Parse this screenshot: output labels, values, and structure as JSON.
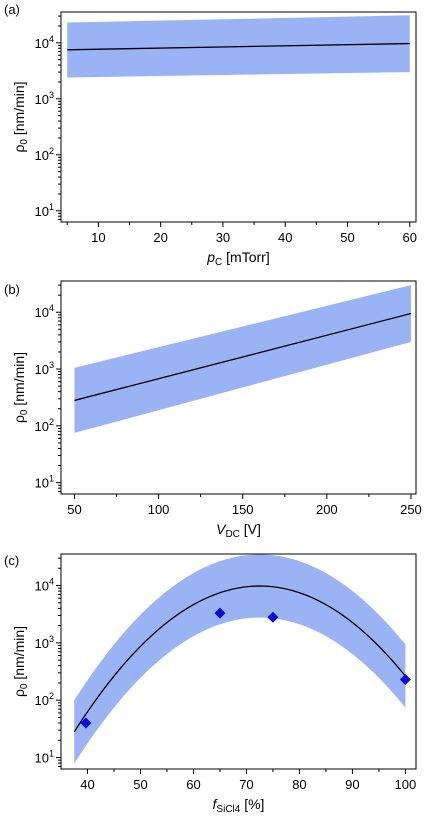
{
  "chart_data": [
    {
      "type": "line",
      "panel_label": "(a)",
      "xlabel": {
        "var": "p",
        "sub": "C",
        "unit": " [mTorr]",
        "italic": true
      },
      "ylabel": {
        "main": "ρ",
        "sub": "0",
        "unit": " [nm/min]"
      },
      "xlim": [
        4,
        61
      ],
      "ylim_log10": [
        0.8,
        4.55
      ],
      "y_scale": "log",
      "x_ticks": [
        10,
        20,
        30,
        40,
        50,
        60
      ],
      "x_minor_ticks": [
        5,
        15,
        25,
        35,
        45,
        55
      ],
      "y_ticks_exp": [
        1,
        2,
        3,
        4
      ],
      "series": [
        {
          "role": "fit",
          "x": [
            5,
            60
          ],
          "y": [
            7500,
            9700
          ]
        },
        {
          "role": "band-upper",
          "x": [
            5,
            60
          ],
          "y": [
            23000,
            31000
          ]
        },
        {
          "role": "band-lower",
          "x": [
            5,
            60
          ],
          "y": [
            2400,
            3000
          ]
        }
      ]
    },
    {
      "type": "line",
      "panel_label": "(b)",
      "xlabel": {
        "var": "V",
        "sub": "DC",
        "unit": " [V]",
        "italic": true
      },
      "ylabel": {
        "main": "ρ",
        "sub": "0",
        "unit": " [nm/min]"
      },
      "xlim": [
        42,
        253
      ],
      "ylim_log10": [
        0.8,
        4.55
      ],
      "y_scale": "log",
      "x_ticks": [
        50,
        100,
        150,
        200,
        250
      ],
      "x_minor_ticks": [
        75,
        125,
        175,
        225
      ],
      "y_ticks_exp": [
        1,
        2,
        3,
        4
      ],
      "series": [
        {
          "role": "fit",
          "x": [
            50,
            250
          ],
          "y": [
            280,
            9500
          ]
        },
        {
          "role": "band-upper",
          "x": [
            50,
            250
          ],
          "y": [
            1050,
            30000
          ]
        },
        {
          "role": "band-lower",
          "x": [
            50,
            250
          ],
          "y": [
            75,
            3000
          ]
        }
      ]
    },
    {
      "type": "scatter",
      "panel_label": "(c)",
      "xlabel": {
        "var": "f",
        "sub": "SiCl4",
        "unit": " [%]",
        "italic": true
      },
      "ylabel": {
        "main": "ρ",
        "sub": "0",
        "unit": " [nm/min]"
      },
      "xlim": [
        35,
        102
      ],
      "ylim_log10": [
        0.8,
        4.55
      ],
      "y_scale": "log",
      "x_ticks": [
        40,
        50,
        60,
        70,
        80,
        90,
        100
      ],
      "x_minor_ticks": [
        45,
        55,
        65,
        75,
        85,
        95
      ],
      "y_ticks_exp": [
        1,
        2,
        3,
        4
      ],
      "fit_model": {
        "peak_x": 72.5,
        "peak_y": 9800,
        "x_range": [
          37.5,
          100
        ]
      },
      "band_factor_log10": 0.5,
      "points": [
        {
          "x": 39.7,
          "y": 40
        },
        {
          "x": 65,
          "y": 3300
        },
        {
          "x": 75,
          "y": 2800
        },
        {
          "x": 100,
          "y": 230
        }
      ]
    }
  ],
  "colors": {
    "band": "#99b3f5",
    "fit": "#000000",
    "marker": "#0a0adc"
  }
}
